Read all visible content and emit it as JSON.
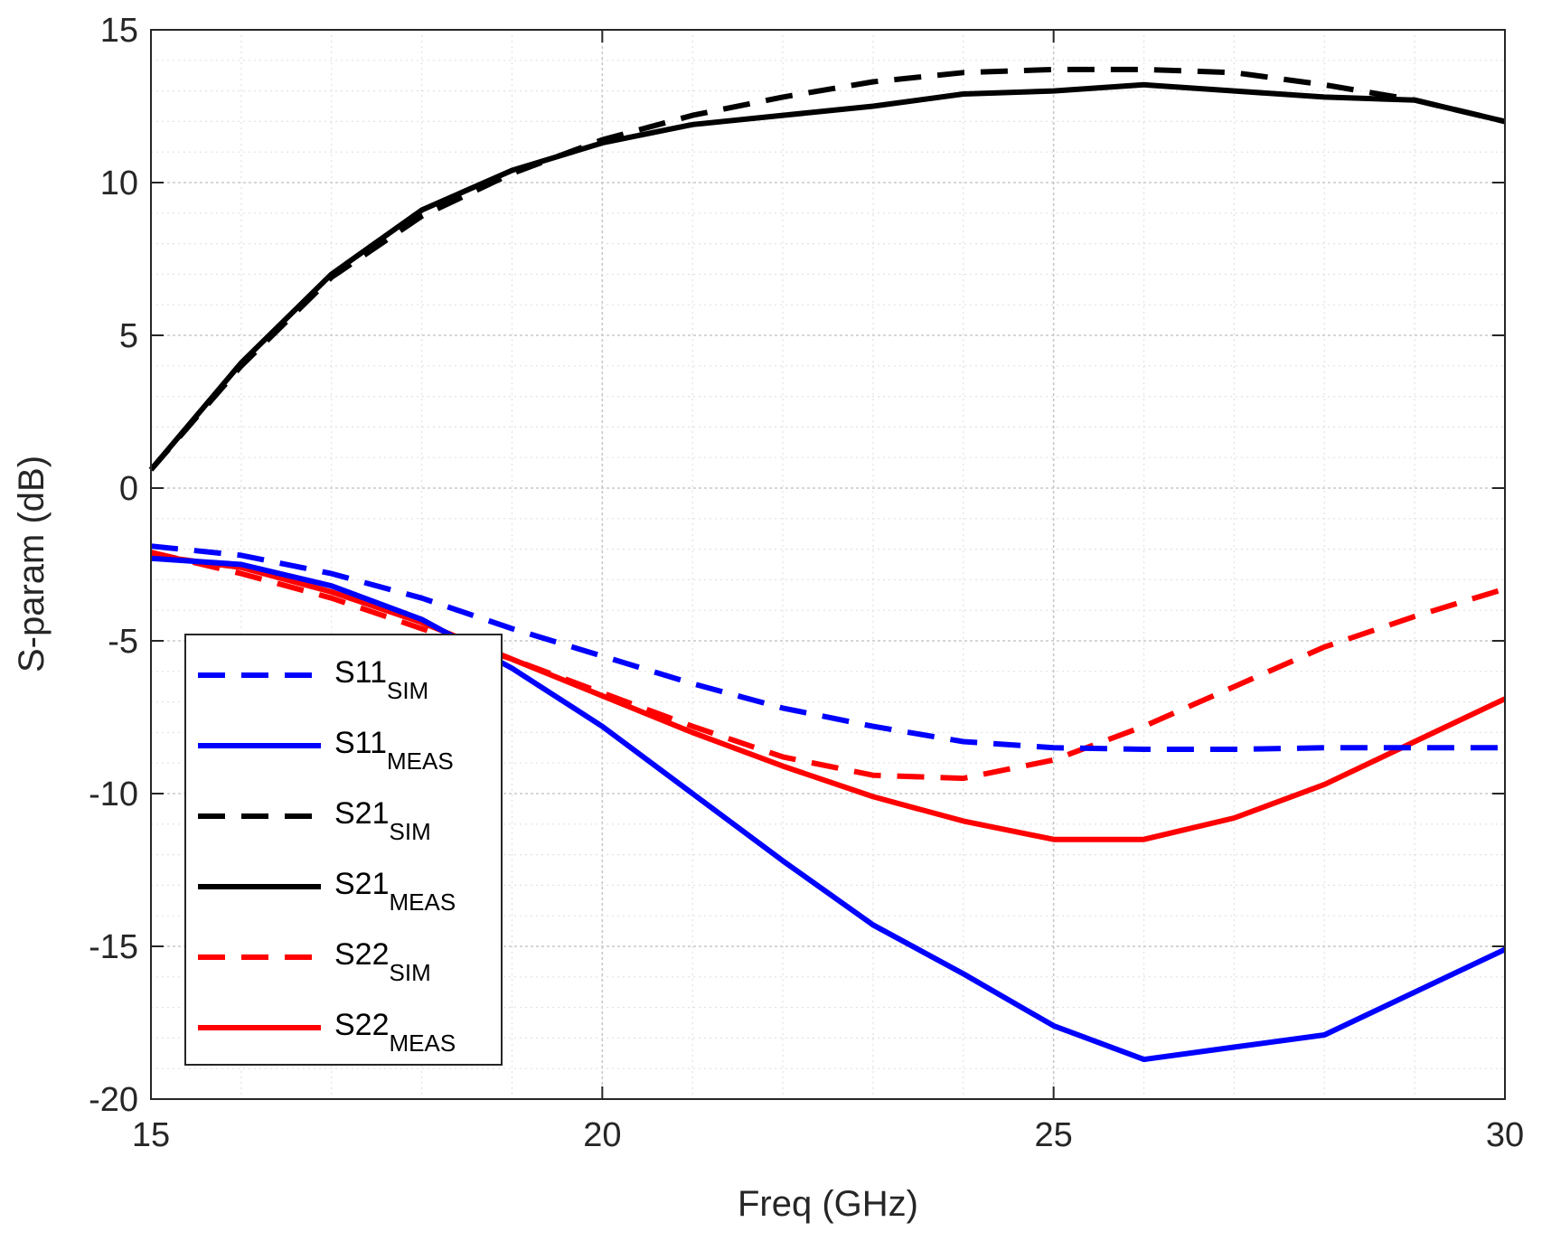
{
  "chart_data": {
    "type": "line",
    "xlabel": "Freq (GHz)",
    "ylabel": "S-param (dB)",
    "xlim": [
      15,
      30
    ],
    "ylim": [
      -20,
      15
    ],
    "xticks": [
      15,
      20,
      25,
      30
    ],
    "yticks": [
      -20,
      -15,
      -10,
      -5,
      0,
      5,
      10,
      15
    ],
    "grid": "major and minor, dotted",
    "legend_position": "lower-left",
    "series": [
      {
        "name": "S11",
        "subscript": "SIM",
        "color": "#0000ff",
        "style": "dashed",
        "x": [
          15,
          16,
          17,
          18,
          19,
          20,
          21,
          22,
          23,
          24,
          25,
          26,
          27,
          28,
          29,
          30
        ],
        "y": [
          -1.9,
          -2.2,
          -2.8,
          -3.6,
          -4.6,
          -5.5,
          -6.4,
          -7.2,
          -7.8,
          -8.3,
          -8.5,
          -8.55,
          -8.55,
          -8.5,
          -8.5,
          -8.5
        ]
      },
      {
        "name": "S11",
        "subscript": "MEAS",
        "color": "#0000ff",
        "style": "solid",
        "x": [
          15,
          16,
          17,
          18,
          19,
          20,
          21,
          22,
          23,
          24,
          25,
          26,
          27,
          28,
          29,
          30
        ],
        "y": [
          -2.3,
          -2.5,
          -3.2,
          -4.3,
          -5.9,
          -7.8,
          -10.0,
          -12.2,
          -14.3,
          -15.9,
          -17.6,
          -18.7,
          -18.3,
          -17.9,
          -16.5,
          -15.1
        ]
      },
      {
        "name": "S21",
        "subscript": "SIM",
        "color": "#000000",
        "style": "dashed",
        "x": [
          15,
          16,
          17,
          18,
          19,
          20,
          21,
          22,
          23,
          24,
          25,
          26,
          27,
          28,
          29,
          30
        ],
        "y": [
          0.6,
          4.0,
          6.9,
          8.9,
          10.3,
          11.4,
          12.2,
          12.8,
          13.3,
          13.6,
          13.7,
          13.7,
          13.6,
          13.2,
          12.7,
          12.0
        ]
      },
      {
        "name": "S21",
        "subscript": "MEAS",
        "color": "#000000",
        "style": "solid",
        "x": [
          15,
          16,
          17,
          18,
          19,
          20,
          21,
          22,
          23,
          24,
          25,
          26,
          27,
          28,
          29,
          30
        ],
        "y": [
          0.6,
          4.1,
          7.0,
          9.1,
          10.4,
          11.3,
          11.9,
          12.2,
          12.5,
          12.9,
          13.0,
          13.2,
          13.0,
          12.8,
          12.7,
          12.0
        ]
      },
      {
        "name": "S22",
        "subscript": "SIM",
        "color": "#ff0000",
        "style": "dashed",
        "x": [
          15,
          16,
          17,
          18,
          19,
          20,
          21,
          22,
          23,
          24,
          25,
          26,
          27,
          28,
          29,
          30
        ],
        "y": [
          -2.1,
          -2.8,
          -3.6,
          -4.6,
          -5.6,
          -6.7,
          -7.8,
          -8.8,
          -9.4,
          -9.5,
          -8.9,
          -7.8,
          -6.5,
          -5.2,
          -4.2,
          -3.3
        ]
      },
      {
        "name": "S22",
        "subscript": "MEAS",
        "color": "#ff0000",
        "style": "solid",
        "x": [
          15,
          16,
          17,
          18,
          19,
          20,
          21,
          22,
          23,
          24,
          25,
          26,
          27,
          28,
          29,
          30
        ],
        "y": [
          -2.2,
          -2.6,
          -3.4,
          -4.4,
          -5.6,
          -6.8,
          -8.0,
          -9.1,
          -10.1,
          -10.9,
          -11.5,
          -11.5,
          -10.8,
          -9.7,
          -8.3,
          -6.9
        ]
      }
    ]
  }
}
